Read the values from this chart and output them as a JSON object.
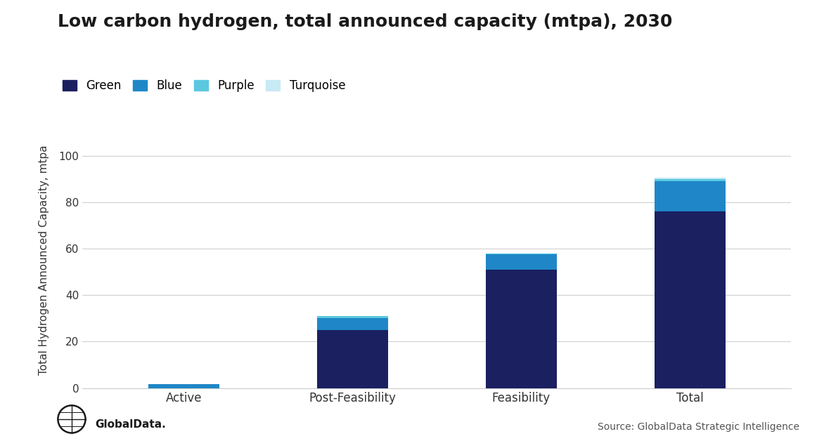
{
  "title": "Low carbon hydrogen, total announced capacity (mtpa), 2030",
  "ylabel": "Total Hydrogen Announced Capacity, mtpa",
  "categories": [
    "Active",
    "Post-Feasibility",
    "Feasibility",
    "Total"
  ],
  "series": {
    "Green": [
      0.0,
      25.0,
      51.0,
      76.0
    ],
    "Blue": [
      1.8,
      5.0,
      6.5,
      13.0
    ],
    "Purple": [
      0.0,
      1.0,
      0.5,
      1.0
    ],
    "Turquoise": [
      0.0,
      0.0,
      0.0,
      0.5
    ]
  },
  "colors": {
    "Green": "#1a2060",
    "Blue": "#1f87c7",
    "Purple": "#5bc8e0",
    "Turquoise": "#c8eaf5"
  },
  "ylim": [
    0,
    110
  ],
  "yticks": [
    0,
    20,
    40,
    60,
    80,
    100
  ],
  "legend_labels": [
    "Green",
    "Blue",
    "Purple",
    "Turquoise"
  ],
  "source_text": "Source: GlobalData Strategic Intelligence",
  "background_color": "#ffffff",
  "grid_color": "#d0d0d0",
  "bar_width": 0.42
}
